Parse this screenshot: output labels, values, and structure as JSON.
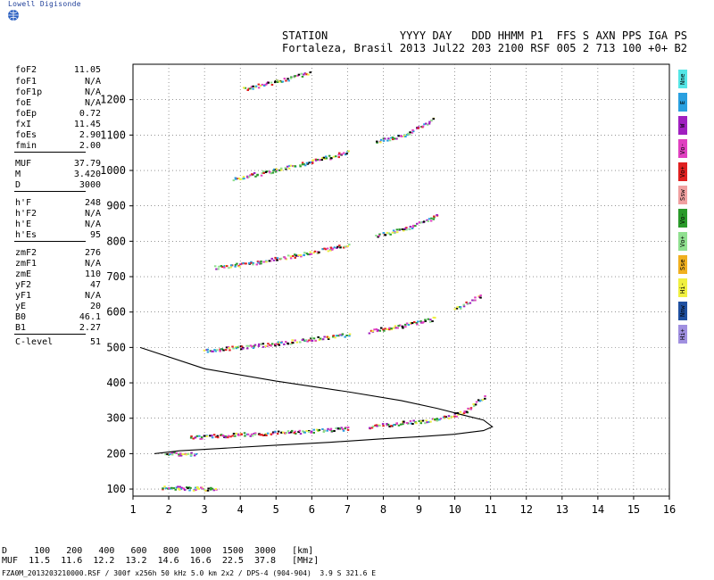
{
  "brand": "Lowell Digisonde",
  "header": {
    "line1": "STATION           YYYY DAY   DDD HHMM P1  FFS S AXN PPS IGA PS",
    "line2": "Fortaleza, Brasil 2013 Jul22 203 2100 RSF 005 2 713 100 +0+ B2"
  },
  "params": [
    {
      "k": "foF2",
      "v": "11.05"
    },
    {
      "k": "foF1",
      "v": "N/A"
    },
    {
      "k": "foF1p",
      "v": "N/A"
    },
    {
      "k": "foE",
      "v": "N/A"
    },
    {
      "k": "foEp",
      "v": "0.72"
    },
    {
      "k": "fxI",
      "v": "11.45"
    },
    {
      "k": "foEs",
      "v": "2.90"
    },
    {
      "k": "fmin",
      "v": "2.00"
    },
    {
      "k": "MUF",
      "v": "37.79"
    },
    {
      "k": "M",
      "v": "3.420"
    },
    {
      "k": "D",
      "v": "3000"
    },
    {
      "k": "h'F",
      "v": "248"
    },
    {
      "k": "h'F2",
      "v": "N/A"
    },
    {
      "k": "h'E",
      "v": "N/A"
    },
    {
      "k": "h'Es",
      "v": "95"
    },
    {
      "k": "zmF2",
      "v": "276"
    },
    {
      "k": "zmF1",
      "v": "N/A"
    },
    {
      "k": "zmE",
      "v": "110"
    },
    {
      "k": "yF2",
      "v": "47"
    },
    {
      "k": "yF1",
      "v": "N/A"
    },
    {
      "k": "yE",
      "v": "20"
    },
    {
      "k": "B0",
      "v": "46.1"
    },
    {
      "k": "B1",
      "v": "2.27"
    },
    {
      "k": "C-level",
      "v": "51"
    }
  ],
  "legend": [
    {
      "label": "Nne",
      "color": "#55e6e6"
    },
    {
      "label": "E",
      "color": "#2aa0e0"
    },
    {
      "label": "W",
      "color": "#a020c0"
    },
    {
      "label": "Vo-",
      "color": "#e040c0"
    },
    {
      "label": "Vo+",
      "color": "#e02020"
    },
    {
      "label": "Ssw",
      "color": "#f0a0a0"
    },
    {
      "label": "Vo-",
      "color": "#2a9a2a"
    },
    {
      "label": "Vo+",
      "color": "#90e090"
    },
    {
      "label": "Sse",
      "color": "#f0b020"
    },
    {
      "label": "Hi-",
      "color": "#f0f040"
    },
    {
      "label": "Nnw",
      "color": "#2050a0"
    },
    {
      "label": "Hi+",
      "color": "#a090e0"
    }
  ],
  "bottom": {
    "line1": "D     100   200   400   600   800  1000  1500  3000   [km]",
    "line2": "MUF  11.5  11.6  12.2  13.2  14.6  16.6  22.5  37.8   [MHz]"
  },
  "footer": "FZA0M_2013203210000.RSF / 300f x256h 50 kHz 5.0 km 2x2 / DPS-4 (904-904)  3.9 S 321.6 E",
  "chart_data": {
    "type": "scatter",
    "xlim": [
      1,
      16
    ],
    "ylim": [
      80,
      1300
    ],
    "xticks": [
      1,
      2,
      3,
      4,
      5,
      6,
      7,
      8,
      9,
      10,
      11,
      12,
      13,
      14,
      15,
      16
    ],
    "yticks": [
      100,
      200,
      300,
      400,
      500,
      600,
      700,
      800,
      900,
      1000,
      1100,
      1200
    ],
    "grid": true,
    "traces": [
      {
        "x": [
          2.6,
          3.5,
          4.5,
          5.5,
          6.5,
          7.0
        ],
        "y": [
          245,
          250,
          255,
          260,
          266,
          270
        ]
      },
      {
        "x": [
          7.6,
          8.5,
          9.5,
          10.3,
          10.8
        ],
        "y": [
          275,
          285,
          295,
          318,
          360
        ]
      },
      {
        "x": [
          3.0,
          4.0,
          5.0,
          6.0,
          7.0
        ],
        "y": [
          490,
          500,
          510,
          522,
          535
        ]
      },
      {
        "x": [
          7.6,
          8.5,
          9.4
        ],
        "y": [
          545,
          560,
          580
        ]
      },
      {
        "x": [
          10.0,
          10.7
        ],
        "y": [
          605,
          645
        ]
      },
      {
        "x": [
          3.3,
          4.5,
          5.5,
          6.5,
          7.0
        ],
        "y": [
          725,
          740,
          758,
          778,
          790
        ]
      },
      {
        "x": [
          7.8,
          8.6,
          9.5
        ],
        "y": [
          815,
          835,
          870
        ]
      },
      {
        "x": [
          3.8,
          5.0,
          6.0,
          7.0
        ],
        "y": [
          975,
          1000,
          1025,
          1050
        ]
      },
      {
        "x": [
          7.8,
          8.6,
          9.4
        ],
        "y": [
          1080,
          1100,
          1145
        ]
      },
      {
        "x": [
          4.1,
          5.0,
          5.9
        ],
        "y": [
          1230,
          1250,
          1275
        ]
      },
      {
        "x": [
          1.8,
          2.3,
          2.8,
          3.3
        ],
        "y": [
          103,
          102,
          100,
          100
        ]
      },
      {
        "x": [
          1.9,
          2.3,
          2.7
        ],
        "y": [
          200,
          198,
          198
        ]
      }
    ],
    "profile": {
      "x": [
        1.2,
        3.0,
        5.0,
        7.0,
        8.5,
        9.5,
        10.2,
        10.8,
        11.05,
        10.8,
        10.0,
        9.0,
        8.0,
        6.5,
        5.0,
        3.5,
        2.3,
        1.6
      ],
      "y": [
        500,
        440,
        405,
        375,
        350,
        328,
        310,
        295,
        276,
        265,
        255,
        248,
        242,
        232,
        224,
        215,
        208,
        200
      ]
    }
  }
}
